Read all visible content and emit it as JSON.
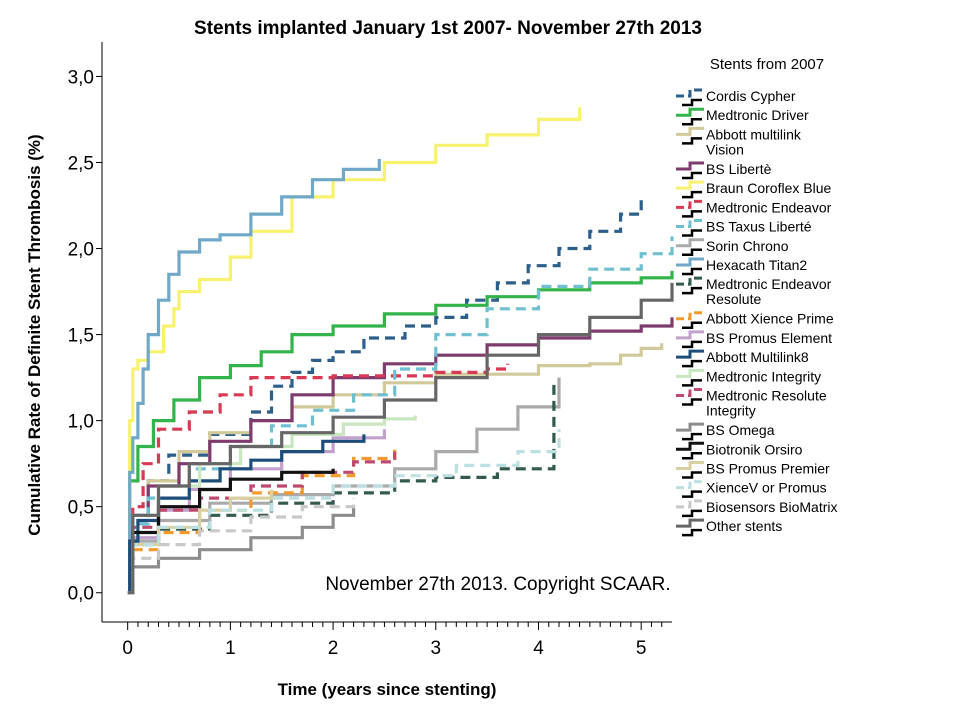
{
  "chart_data": {
    "type": "line",
    "title": "Stents implanted January 1st 2007- November 27th 2013",
    "xlabel": "Time (years since stenting)",
    "ylabel": "Cumulative Rate of Definite Stent Thrombosis (%)",
    "xlim": [
      -0.25,
      5.3
    ],
    "ylim": [
      -0.17,
      3.2
    ],
    "x_ticks": [
      0,
      1,
      2,
      3,
      4,
      5
    ],
    "x_tick_labels": [
      "0",
      "1",
      "2",
      "3",
      "4",
      "5"
    ],
    "y_ticks": [
      0.0,
      0.5,
      1.0,
      1.5,
      2.0,
      2.5,
      3.0
    ],
    "y_tick_labels": [
      "0,0",
      "0,5",
      "1,0",
      "1,5",
      "2,0",
      "2,5",
      "3,0"
    ],
    "annotation": "November 27th 2013. Copyright SCAAR.",
    "legend_title": "Stents from 2007",
    "legend_position": "right",
    "series": [
      {
        "name": "Cordis Cypher",
        "color": "#2c5f8a",
        "dash": "dashed",
        "x": [
          0,
          0.05,
          0.2,
          0.4,
          0.8,
          1.2,
          1.4,
          1.6,
          1.8,
          2.0,
          2.3,
          2.7,
          3.0,
          3.3,
          3.6,
          3.9,
          4.2,
          4.5,
          4.8,
          5.0
        ],
        "y": [
          0,
          0.45,
          0.65,
          0.8,
          0.92,
          1.05,
          1.2,
          1.28,
          1.35,
          1.4,
          1.48,
          1.55,
          1.6,
          1.7,
          1.8,
          1.9,
          2.0,
          2.1,
          2.2,
          2.3
        ]
      },
      {
        "name": "Medtronic Driver",
        "color": "#32b44a",
        "dash": "solid",
        "x": [
          0,
          0.02,
          0.1,
          0.25,
          0.45,
          0.7,
          1.0,
          1.3,
          1.6,
          2.0,
          2.5,
          3.0,
          3.5,
          4.0,
          4.5,
          5.0,
          5.3
        ],
        "y": [
          0,
          0.65,
          0.85,
          1.0,
          1.12,
          1.25,
          1.32,
          1.4,
          1.5,
          1.55,
          1.62,
          1.67,
          1.72,
          1.76,
          1.8,
          1.83,
          1.87
        ]
      },
      {
        "name": "Abbott multilink Vision",
        "color": "#d2c99a",
        "dash": "solid",
        "x": [
          0,
          0.05,
          0.2,
          0.5,
          0.8,
          1.2,
          1.6,
          2.0,
          2.5,
          3.0,
          4.0,
          4.5,
          4.8,
          5.0,
          5.2
        ],
        "y": [
          0,
          0.45,
          0.65,
          0.82,
          0.93,
          1.0,
          1.08,
          1.15,
          1.22,
          1.27,
          1.32,
          1.33,
          1.38,
          1.42,
          1.45
        ]
      },
      {
        "name": "BS Libertè",
        "color": "#7f3a6e",
        "dash": "solid",
        "x": [
          0,
          0.05,
          0.2,
          0.5,
          0.8,
          1.2,
          1.6,
          2.0,
          2.5,
          3.0,
          3.5,
          4.0,
          4.5,
          5.0,
          5.3
        ],
        "y": [
          0,
          0.45,
          0.62,
          0.75,
          0.88,
          1.0,
          1.15,
          1.25,
          1.33,
          1.38,
          1.44,
          1.48,
          1.52,
          1.55,
          1.6
        ]
      },
      {
        "name": "Braun Coroflex Blue",
        "color": "#f7f16d",
        "dash": "solid",
        "x": [
          0,
          0.02,
          0.05,
          0.1,
          0.2,
          0.35,
          0.45,
          0.5,
          0.7,
          1.0,
          1.2,
          1.6,
          2.0,
          2.5,
          3.0,
          3.5,
          4.0,
          4.4
        ],
        "y": [
          0,
          1.0,
          1.3,
          1.35,
          1.4,
          1.55,
          1.65,
          1.75,
          1.82,
          1.95,
          2.1,
          2.3,
          2.4,
          2.5,
          2.6,
          2.66,
          2.75,
          2.82
        ]
      },
      {
        "name": "Medtronic Endeavor",
        "color": "#d63a54",
        "dash": "dashed",
        "x": [
          0,
          0.05,
          0.15,
          0.3,
          0.6,
          0.9,
          1.2,
          1.5,
          2.0,
          2.5,
          3.0,
          3.5,
          3.7
        ],
        "y": [
          0,
          0.5,
          0.75,
          0.95,
          1.05,
          1.15,
          1.25,
          1.25,
          1.26,
          1.26,
          1.28,
          1.3,
          1.33
        ]
      },
      {
        "name": "BS Taxus Liberté",
        "color": "#6ec0d1",
        "dash": "dashed",
        "x": [
          0,
          0.05,
          0.2,
          0.6,
          1.0,
          1.4,
          1.8,
          2.2,
          2.6,
          3.0,
          3.5,
          4.0,
          4.5,
          5.0,
          5.3
        ],
        "y": [
          0,
          0.4,
          0.55,
          0.72,
          0.85,
          0.97,
          1.06,
          1.15,
          1.3,
          1.5,
          1.65,
          1.78,
          1.88,
          1.97,
          2.07
        ]
      },
      {
        "name": "Sorin Chrono",
        "color": "#aaaaaa",
        "dash": "solid",
        "x": [
          0,
          0.05,
          0.3,
          0.8,
          1.4,
          2.0,
          2.6,
          3.0,
          3.4,
          3.8,
          4.2
        ],
        "y": [
          0,
          0.3,
          0.42,
          0.52,
          0.57,
          0.62,
          0.72,
          0.82,
          0.95,
          1.08,
          1.25
        ]
      },
      {
        "name": "Hexacath Titan2",
        "color": "#70a8c8",
        "dash": "solid",
        "x": [
          0,
          0.02,
          0.05,
          0.1,
          0.15,
          0.2,
          0.3,
          0.4,
          0.5,
          0.7,
          0.9,
          1.2,
          1.5,
          1.8,
          2.1,
          2.45
        ],
        "y": [
          0,
          0.7,
          0.9,
          1.1,
          1.3,
          1.5,
          1.7,
          1.85,
          1.98,
          2.05,
          2.08,
          2.2,
          2.3,
          2.4,
          2.46,
          2.52
        ]
      },
      {
        "name": "Medtronic Endeavor Resolute",
        "color": "#345a4e",
        "dash": "dashed",
        "x": [
          0,
          0.05,
          0.3,
          0.8,
          1.4,
          2.0,
          2.6,
          3.0,
          3.6,
          3.8,
          4.1,
          4.15
        ],
        "y": [
          0,
          0.28,
          0.37,
          0.45,
          0.52,
          0.58,
          0.65,
          0.67,
          0.72,
          0.72,
          0.72,
          1.22
        ]
      },
      {
        "name": "Abbott Xience Prime",
        "color": "#f39a2d",
        "dash": "dashed",
        "x": [
          0,
          0.05,
          0.3,
          0.7,
          1.2,
          1.7,
          2.2,
          2.6
        ],
        "y": [
          0,
          0.25,
          0.35,
          0.48,
          0.58,
          0.68,
          0.78,
          0.85
        ]
      },
      {
        "name": "BS Promus Element",
        "color": "#c2a0cc",
        "dash": "solid",
        "x": [
          0,
          0.05,
          0.3,
          0.6,
          1.0,
          1.5,
          2.0,
          2.5
        ],
        "y": [
          0,
          0.32,
          0.48,
          0.6,
          0.72,
          0.82,
          0.9,
          0.95
        ]
      },
      {
        "name": "Abbott Multilink8",
        "color": "#1d4d7a",
        "dash": "solid",
        "x": [
          0,
          0.02,
          0.1,
          0.3,
          0.6,
          0.9,
          1.2,
          1.5,
          1.9,
          2.3
        ],
        "y": [
          0,
          0.3,
          0.42,
          0.55,
          0.65,
          0.72,
          0.77,
          0.82,
          0.88,
          0.92
        ]
      },
      {
        "name": "Medtronic Integrity",
        "color": "#c8e6c0",
        "dash": "solid",
        "x": [
          0,
          0.05,
          0.3,
          0.7,
          1.1,
          1.6,
          2.1,
          2.5,
          2.8
        ],
        "y": [
          0,
          0.45,
          0.62,
          0.75,
          0.85,
          0.92,
          0.98,
          1.01,
          1.03
        ]
      },
      {
        "name": "Medtronic Resolute Integrity",
        "color": "#bf4a6e",
        "dash": "dashed",
        "x": [
          0,
          0.05,
          0.3,
          0.7,
          1.2,
          1.7,
          2.2,
          2.6
        ],
        "y": [
          0,
          0.38,
          0.48,
          0.55,
          0.62,
          0.7,
          0.76,
          0.82
        ]
      },
      {
        "name": "BS Omega",
        "color": "#8c8c8c",
        "dash": "solid",
        "x": [
          0,
          0.05,
          0.3,
          0.7,
          1.2,
          1.7,
          2.0,
          2.2
        ],
        "y": [
          0,
          0.15,
          0.2,
          0.25,
          0.32,
          0.38,
          0.45,
          0.5
        ]
      },
      {
        "name": "Biotronik Orsiro",
        "color": "#111111",
        "dash": "solid",
        "x": [
          0,
          0.05,
          0.3,
          0.7,
          1.0,
          1.5,
          2.0
        ],
        "y": [
          0,
          0.35,
          0.5,
          0.6,
          0.66,
          0.7,
          0.72
        ]
      },
      {
        "name": "BS Promus Premier",
        "color": "#d8d0a0",
        "dash": "solid",
        "x": [
          0,
          0.05,
          0.3,
          0.7,
          1.0,
          1.4
        ],
        "y": [
          0,
          0.28,
          0.38,
          0.48,
          0.55,
          0.6
        ]
      },
      {
        "name": "XienceV or Promus",
        "color": "#bcdfe0",
        "dash": "dashed",
        "x": [
          0,
          0.05,
          0.3,
          0.8,
          1.4,
          2.0,
          2.6,
          3.2,
          3.8,
          4.2
        ],
        "y": [
          0,
          0.28,
          0.38,
          0.48,
          0.55,
          0.62,
          0.68,
          0.74,
          0.82,
          0.95
        ]
      },
      {
        "name": "Biosensors BioMatrix",
        "color": "#c8c8c8",
        "dash": "dashed",
        "x": [
          0,
          0.05,
          0.3,
          0.7,
          1.2,
          1.7,
          2.2
        ],
        "y": [
          0,
          0.2,
          0.28,
          0.36,
          0.44,
          0.5,
          0.55
        ]
      },
      {
        "name": "Other stents",
        "color": "#666666",
        "dash": "solid",
        "x": [
          0,
          0.05,
          0.3,
          0.6,
          1.0,
          1.5,
          2.0,
          2.5,
          3.0,
          3.5,
          4.0,
          4.5,
          5.0,
          5.3
        ],
        "y": [
          0,
          0.45,
          0.62,
          0.75,
          0.85,
          0.93,
          1.02,
          1.12,
          1.25,
          1.38,
          1.5,
          1.6,
          1.7,
          1.8
        ]
      }
    ]
  }
}
